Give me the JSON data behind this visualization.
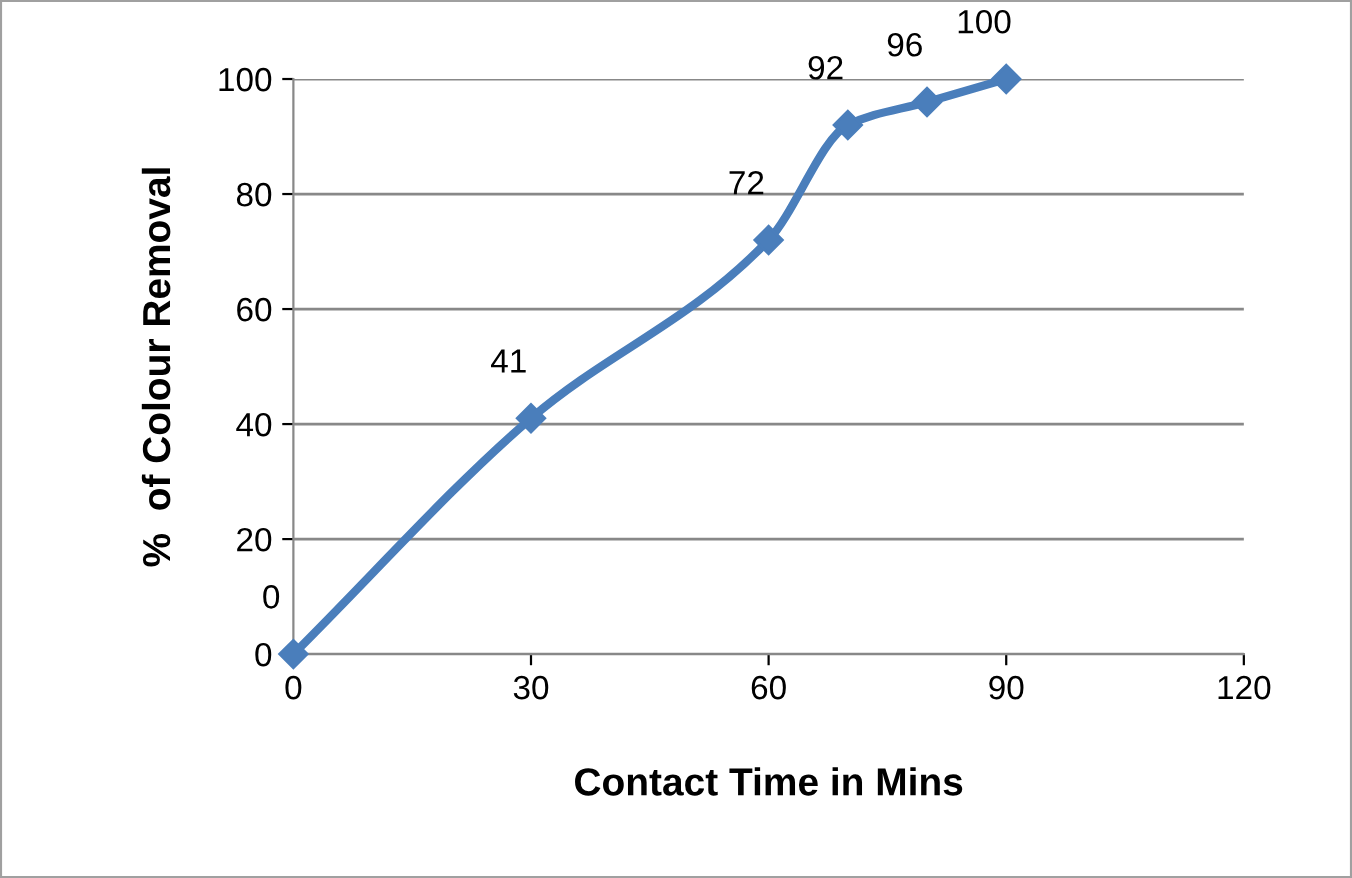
{
  "chart_data": {
    "type": "line",
    "xlabel": "Contact Time in Mins",
    "ylabel": "%  of Colour Removal",
    "x": [
      0,
      30,
      60,
      70,
      80,
      90
    ],
    "series": [
      {
        "color": "#4a7ebb",
        "values": [
          0,
          41,
          72,
          92,
          96,
          100
        ]
      }
    ],
    "xlim": [
      0,
      120
    ],
    "xticks": [
      0,
      30,
      60,
      90,
      120
    ],
    "ylim": [
      0,
      100
    ],
    "yticks": [
      0,
      20,
      40,
      60,
      80,
      100
    ],
    "grid": "y",
    "marker": "diamond",
    "line_style": "solid",
    "data_labels": true
  }
}
